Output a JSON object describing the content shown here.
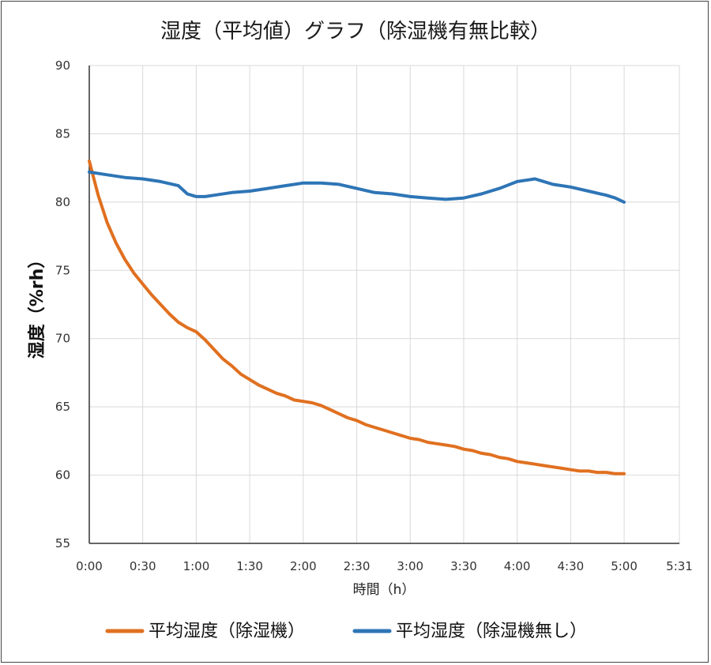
{
  "chart_data": {
    "type": "line",
    "title": "湿度（平均値）グラフ（除湿機有無比較）",
    "xlabel": "時間（h）",
    "ylabel": "湿度（%rh）",
    "x_unit": "minutes",
    "xlim": [
      0,
      331
    ],
    "ylim": [
      55,
      90
    ],
    "x_tick_values": [
      0,
      30,
      60,
      90,
      120,
      150,
      180,
      210,
      240,
      270,
      300,
      331
    ],
    "x_tick_labels": [
      "0:00",
      "0:30",
      "1:00",
      "1:30",
      "2:00",
      "2:30",
      "3:00",
      "3:30",
      "4:00",
      "4:30",
      "5:00",
      "5:31"
    ],
    "y_ticks": [
      55,
      60,
      65,
      70,
      75,
      80,
      85,
      90
    ],
    "grid": true,
    "legend_position": "bottom",
    "series": [
      {
        "name": "平均湿度（除湿機）",
        "color": "#E07020",
        "points": [
          [
            0,
            83.0
          ],
          [
            2,
            82.0
          ],
          [
            5,
            80.5
          ],
          [
            10,
            78.5
          ],
          [
            15,
            77.0
          ],
          [
            20,
            75.8
          ],
          [
            25,
            74.8
          ],
          [
            30,
            74.0
          ],
          [
            35,
            73.2
          ],
          [
            40,
            72.5
          ],
          [
            45,
            71.8
          ],
          [
            50,
            71.2
          ],
          [
            55,
            70.8
          ],
          [
            60,
            70.5
          ],
          [
            65,
            69.9
          ],
          [
            70,
            69.2
          ],
          [
            75,
            68.5
          ],
          [
            80,
            68.0
          ],
          [
            85,
            67.4
          ],
          [
            90,
            67.0
          ],
          [
            95,
            66.6
          ],
          [
            100,
            66.3
          ],
          [
            105,
            66.0
          ],
          [
            110,
            65.8
          ],
          [
            115,
            65.5
          ],
          [
            120,
            65.4
          ],
          [
            125,
            65.3
          ],
          [
            130,
            65.1
          ],
          [
            135,
            64.8
          ],
          [
            140,
            64.5
          ],
          [
            145,
            64.2
          ],
          [
            150,
            64.0
          ],
          [
            155,
            63.7
          ],
          [
            160,
            63.5
          ],
          [
            165,
            63.3
          ],
          [
            170,
            63.1
          ],
          [
            175,
            62.9
          ],
          [
            180,
            62.7
          ],
          [
            185,
            62.6
          ],
          [
            190,
            62.4
          ],
          [
            195,
            62.3
          ],
          [
            200,
            62.2
          ],
          [
            205,
            62.1
          ],
          [
            210,
            61.9
          ],
          [
            215,
            61.8
          ],
          [
            220,
            61.6
          ],
          [
            225,
            61.5
          ],
          [
            230,
            61.3
          ],
          [
            235,
            61.2
          ],
          [
            240,
            61.0
          ],
          [
            245,
            60.9
          ],
          [
            250,
            60.8
          ],
          [
            255,
            60.7
          ],
          [
            260,
            60.6
          ],
          [
            265,
            60.5
          ],
          [
            270,
            60.4
          ],
          [
            275,
            60.3
          ],
          [
            280,
            60.3
          ],
          [
            285,
            60.2
          ],
          [
            290,
            60.2
          ],
          [
            295,
            60.1
          ],
          [
            300,
            60.1
          ]
        ]
      },
      {
        "name": "平均湿度（除湿機無し）",
        "color": "#2E75B6",
        "points": [
          [
            0,
            82.2
          ],
          [
            10,
            82.0
          ],
          [
            20,
            81.8
          ],
          [
            30,
            81.7
          ],
          [
            40,
            81.5
          ],
          [
            50,
            81.2
          ],
          [
            55,
            80.6
          ],
          [
            60,
            80.4
          ],
          [
            65,
            80.4
          ],
          [
            70,
            80.5
          ],
          [
            80,
            80.7
          ],
          [
            90,
            80.8
          ],
          [
            100,
            81.0
          ],
          [
            110,
            81.2
          ],
          [
            120,
            81.4
          ],
          [
            130,
            81.4
          ],
          [
            140,
            81.3
          ],
          [
            150,
            81.0
          ],
          [
            160,
            80.7
          ],
          [
            170,
            80.6
          ],
          [
            180,
            80.4
          ],
          [
            190,
            80.3
          ],
          [
            200,
            80.2
          ],
          [
            210,
            80.3
          ],
          [
            220,
            80.6
          ],
          [
            230,
            81.0
          ],
          [
            240,
            81.5
          ],
          [
            245,
            81.6
          ],
          [
            250,
            81.7
          ],
          [
            255,
            81.5
          ],
          [
            260,
            81.3
          ],
          [
            270,
            81.1
          ],
          [
            280,
            80.8
          ],
          [
            290,
            80.5
          ],
          [
            295,
            80.3
          ],
          [
            300,
            80.0
          ]
        ]
      }
    ]
  }
}
